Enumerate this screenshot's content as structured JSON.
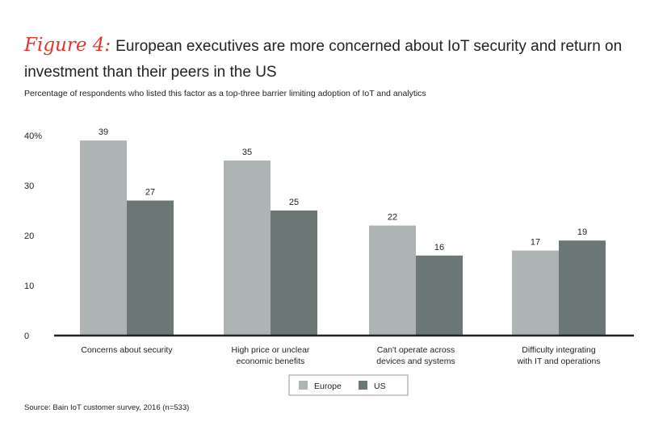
{
  "figure_label": "Figure 4:",
  "title": "European executives are more concerned about IoT security and return on investment than their peers in the US",
  "subtitle": "Percentage of respondents who listed this factor as a top-three barrier limiting adoption of IoT and analytics",
  "source": "Source: Bain IoT customer survey, 2016 (n=533)",
  "chart_data": {
    "type": "bar",
    "categories": [
      [
        "Concerns about security"
      ],
      [
        "High price or unclear",
        "economic benefits"
      ],
      [
        "Can't operate across",
        "devices and systems"
      ],
      [
        "Difficulty integrating",
        "with IT and operations"
      ]
    ],
    "series": [
      {
        "name": "Europe",
        "values": [
          39,
          35,
          22,
          17
        ],
        "color": "#adb4b3"
      },
      {
        "name": "US",
        "values": [
          27,
          25,
          16,
          19
        ],
        "color": "#6b7775"
      }
    ],
    "yticks": [
      "0",
      "10",
      "20",
      "30",
      "40%"
    ],
    "ylim": [
      0,
      40
    ],
    "grid": false,
    "legend": "bottom-center"
  }
}
